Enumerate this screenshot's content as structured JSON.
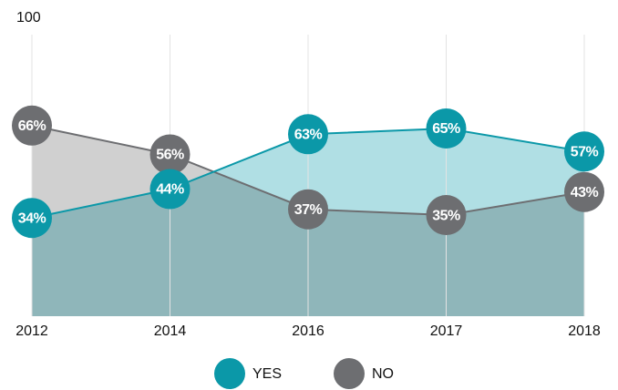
{
  "chart_data": {
    "type": "line",
    "categories": [
      "2012",
      "2014",
      "2016",
      "2017",
      "2018"
    ],
    "series": [
      {
        "name": "NO",
        "color": "#6d6e71",
        "area_color": "#d0d0d0",
        "values": [
          66,
          56,
          37,
          35,
          43
        ],
        "value_labels": [
          "66%",
          "56%",
          "37%",
          "35%",
          "43%"
        ]
      },
      {
        "name": "YES",
        "color": "#0b98a8",
        "area_color": "#b0dfe4",
        "values": [
          34,
          44,
          63,
          65,
          57
        ],
        "value_labels": [
          "34%",
          "44%",
          "63%",
          "65%",
          "57%"
        ]
      }
    ],
    "ylim": [
      0,
      100
    ],
    "yticks": [
      100
    ],
    "grid": true,
    "legend": "bottom"
  }
}
